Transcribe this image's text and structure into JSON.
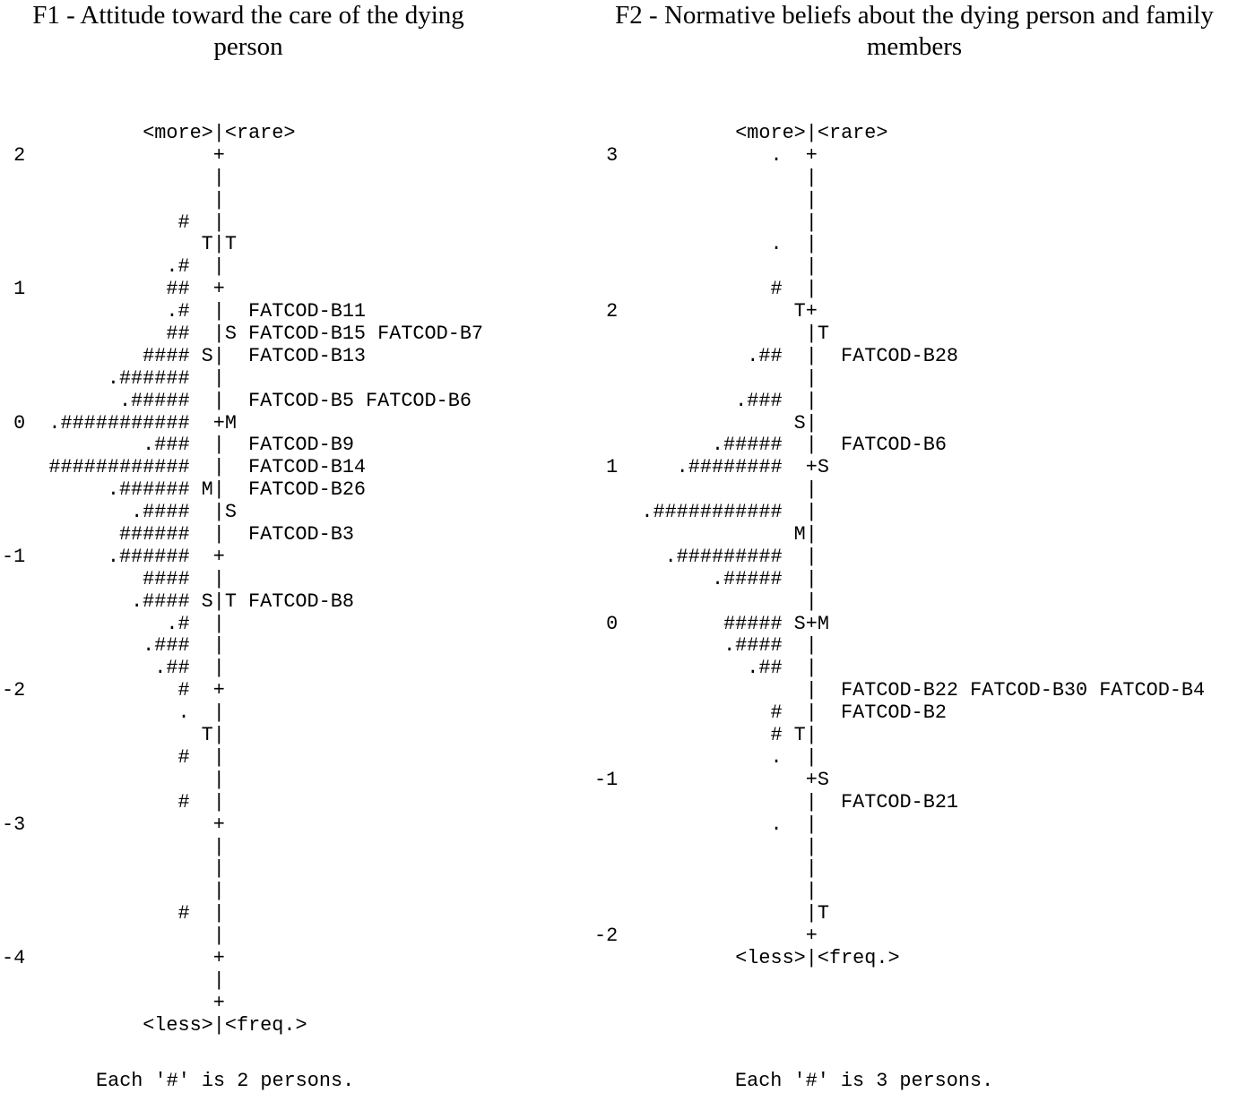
{
  "left": {
    "title": "F1 - Attitude toward the care of the dying person",
    "top_label": "<more>|<rare>",
    "bottom_label": "<less>|<freq.>",
    "footnote": "Each '#' is 2 persons.",
    "rows": [
      [
        "2",
        "",
        "",
        "+",
        "",
        ""
      ],
      [
        "",
        "",
        "",
        "|",
        "",
        ""
      ],
      [
        "",
        "",
        "",
        "|",
        "",
        ""
      ],
      [
        "",
        "#",
        "",
        "|",
        "",
        ""
      ],
      [
        "",
        "",
        "T",
        "|",
        "T",
        ""
      ],
      [
        "",
        ".#",
        "",
        "|",
        "",
        ""
      ],
      [
        "1",
        "##",
        "",
        "+",
        "",
        ""
      ],
      [
        "",
        ".#",
        "",
        "|",
        "",
        "FATCOD-B11"
      ],
      [
        "",
        "##",
        "",
        "|",
        "S",
        "FATCOD-B15 FATCOD-B7"
      ],
      [
        "",
        "####",
        "S",
        "|",
        "",
        "FATCOD-B13"
      ],
      [
        "",
        ".######",
        "",
        "|",
        "",
        ""
      ],
      [
        "",
        ".#####",
        "",
        "|",
        "",
        "FATCOD-B5 FATCOD-B6"
      ],
      [
        "0",
        ".###########",
        "",
        "+",
        "M",
        ""
      ],
      [
        "",
        ".###",
        "",
        "|",
        "",
        "FATCOD-B9"
      ],
      [
        "",
        "############",
        "",
        "|",
        "",
        "FATCOD-B14"
      ],
      [
        "",
        ".######",
        "M",
        "|",
        "",
        "FATCOD-B26"
      ],
      [
        "",
        ".####",
        "",
        "|",
        "S",
        ""
      ],
      [
        "",
        "######",
        "",
        "|",
        "",
        "FATCOD-B3"
      ],
      [
        "-1",
        ".######",
        "",
        "+",
        "",
        ""
      ],
      [
        "",
        "####",
        "",
        "|",
        "",
        ""
      ],
      [
        "",
        ".####",
        "S",
        "|",
        "T",
        "FATCOD-B8"
      ],
      [
        "",
        ".#",
        "",
        "|",
        "",
        ""
      ],
      [
        "",
        ".###",
        "",
        "|",
        "",
        ""
      ],
      [
        "",
        ".##",
        "",
        "|",
        "",
        ""
      ],
      [
        "-2",
        "#",
        "",
        "+",
        "",
        ""
      ],
      [
        "",
        ".",
        "",
        "|",
        "",
        ""
      ],
      [
        "",
        "",
        "T",
        "|",
        "",
        ""
      ],
      [
        "",
        "#",
        "",
        "|",
        "",
        ""
      ],
      [
        "",
        "",
        "",
        "|",
        "",
        ""
      ],
      [
        "",
        "#",
        "",
        "|",
        "",
        ""
      ],
      [
        "-3",
        "",
        "",
        "+",
        "",
        ""
      ],
      [
        "",
        "",
        "",
        "|",
        "",
        ""
      ],
      [
        "",
        "",
        "",
        "|",
        "",
        ""
      ],
      [
        "",
        "",
        "",
        "|",
        "",
        ""
      ],
      [
        "",
        "#",
        "",
        "|",
        "",
        ""
      ],
      [
        "",
        "",
        "",
        "|",
        "",
        ""
      ],
      [
        "-4",
        "",
        "",
        "+",
        "",
        ""
      ],
      [
        "",
        "",
        "",
        "|",
        "",
        ""
      ],
      [
        "",
        "",
        "",
        "+",
        "",
        ""
      ]
    ]
  },
  "right": {
    "title": "F2 - Normative beliefs about the dying person and family members",
    "top_label": "<more>|<rare>",
    "bottom_label": "<less>|<freq.>",
    "footnote": "Each '#' is 3 persons.",
    "rows": [
      [
        "3",
        ".",
        "",
        "+",
        "",
        ""
      ],
      [
        "",
        "",
        "",
        "|",
        "",
        ""
      ],
      [
        "",
        "",
        "",
        "|",
        "",
        ""
      ],
      [
        "",
        "",
        "",
        "|",
        "",
        ""
      ],
      [
        "",
        ".",
        "",
        "|",
        "",
        ""
      ],
      [
        "",
        "",
        "",
        "|",
        "",
        ""
      ],
      [
        "",
        "#",
        "",
        "|",
        "",
        ""
      ],
      [
        "2",
        "",
        "T",
        "+",
        "",
        ""
      ],
      [
        "",
        "",
        "",
        "|",
        "T",
        ""
      ],
      [
        "",
        ".##",
        "",
        "|",
        "",
        "FATCOD-B28"
      ],
      [
        "",
        "",
        "",
        "|",
        "",
        ""
      ],
      [
        "",
        ".###",
        "",
        "|",
        "",
        ""
      ],
      [
        "",
        "",
        "S",
        "|",
        "",
        ""
      ],
      [
        "",
        ".#####",
        "",
        "|",
        "",
        "FATCOD-B6"
      ],
      [
        "1",
        ".########",
        "",
        "+",
        "S",
        ""
      ],
      [
        "",
        "",
        "",
        "|",
        "",
        ""
      ],
      [
        "",
        ".###########",
        "",
        "|",
        "",
        ""
      ],
      [
        "",
        "",
        "M",
        "|",
        "",
        ""
      ],
      [
        "",
        ".#########",
        "",
        "|",
        "",
        ""
      ],
      [
        "",
        ".#####",
        "",
        "|",
        "",
        ""
      ],
      [
        "",
        "",
        "",
        "|",
        "",
        ""
      ],
      [
        "0",
        "#####",
        "S",
        "+",
        "M",
        ""
      ],
      [
        "",
        ".####",
        "",
        "|",
        "",
        ""
      ],
      [
        "",
        ".##",
        "",
        "|",
        "",
        ""
      ],
      [
        "",
        "",
        "",
        "|",
        "",
        "FATCOD-B22 FATCOD-B30 FATCOD-B4"
      ],
      [
        "",
        "#",
        "",
        "|",
        "",
        "FATCOD-B2"
      ],
      [
        "",
        "#",
        "T",
        "|",
        "",
        ""
      ],
      [
        "",
        ".",
        "",
        "|",
        "",
        ""
      ],
      [
        "-1",
        "",
        "",
        "+",
        "S",
        ""
      ],
      [
        "",
        "",
        "",
        "|",
        "",
        "FATCOD-B21"
      ],
      [
        "",
        ".",
        "",
        "|",
        "",
        ""
      ],
      [
        "",
        "",
        "",
        "|",
        "",
        ""
      ],
      [
        "",
        "",
        "",
        "|",
        "",
        ""
      ],
      [
        "",
        "",
        "",
        "|",
        "",
        ""
      ],
      [
        "",
        "",
        "",
        "|",
        "T",
        ""
      ],
      [
        "-2",
        "",
        "",
        "+",
        "",
        ""
      ]
    ]
  }
}
